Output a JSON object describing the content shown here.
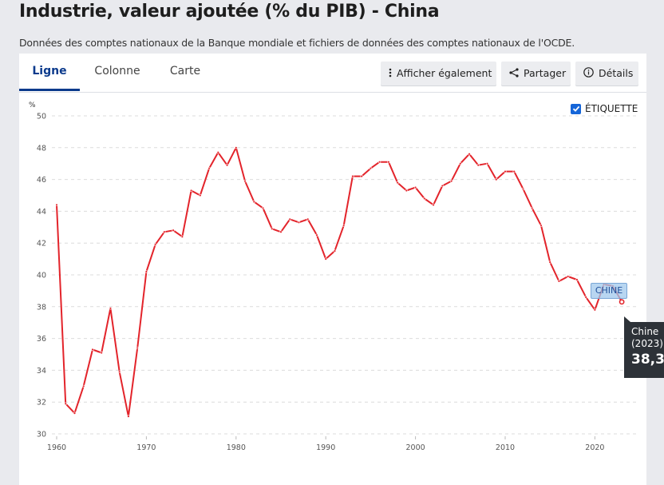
{
  "header": {
    "title": "Industrie, valeur ajoutée (% du PIB) - China",
    "subtitle": "Données des comptes nationaux de la Banque mondiale et fichiers de données des comptes nationaux de l'OCDE."
  },
  "tabs": [
    {
      "label": "Ligne",
      "active": true
    },
    {
      "label": "Colonne",
      "active": false
    },
    {
      "label": "Carte",
      "active": false
    }
  ],
  "toolbar": {
    "show_also_label": "Afficher également",
    "share_label": "Partager",
    "details_label": "Détails",
    "show_also_icon": "vertical-dots-icon",
    "share_icon": "share-icon",
    "details_icon": "info-icon"
  },
  "label_toggle": {
    "label": "ÉTIQUETTE",
    "checked": true
  },
  "colors": {
    "accent": "#0b3a8c",
    "series": "#e3242b",
    "checkbox": "#1565d8",
    "tooltip_bg": "#2d3238"
  },
  "series_label": "CHINE",
  "tooltip": {
    "name": "Chine",
    "year": "(2023)",
    "value": "38,3"
  },
  "chart_data": {
    "type": "line",
    "title": "Industrie, valeur ajoutée (% du PIB) - China",
    "xlabel": "",
    "ylabel": "%",
    "ylim": [
      30,
      50
    ],
    "xlim": [
      1960,
      2023
    ],
    "yticks": [
      30,
      32,
      34,
      36,
      38,
      40,
      42,
      44,
      46,
      48,
      50
    ],
    "xticks": [
      1960,
      1970,
      1980,
      1990,
      2000,
      2010,
      2020
    ],
    "grid": true,
    "legend": "label on series end: CHINE",
    "x": [
      1960,
      1961,
      1962,
      1963,
      1964,
      1965,
      1966,
      1967,
      1968,
      1969,
      1970,
      1971,
      1972,
      1973,
      1974,
      1975,
      1976,
      1977,
      1978,
      1979,
      1980,
      1981,
      1982,
      1983,
      1984,
      1985,
      1986,
      1987,
      1988,
      1989,
      1990,
      1991,
      1992,
      1993,
      1994,
      1995,
      1996,
      1997,
      1998,
      1999,
      2000,
      2001,
      2002,
      2003,
      2004,
      2005,
      2006,
      2007,
      2008,
      2009,
      2010,
      2011,
      2012,
      2013,
      2014,
      2015,
      2016,
      2017,
      2018,
      2019,
      2020,
      2021,
      2022,
      2023
    ],
    "series": [
      {
        "name": "Chine",
        "values": [
          44.4,
          31.9,
          31.3,
          33.0,
          35.3,
          35.1,
          37.9,
          33.9,
          31.1,
          35.4,
          40.2,
          41.9,
          42.7,
          42.8,
          42.4,
          45.3,
          45.0,
          46.7,
          47.7,
          46.9,
          48.0,
          45.9,
          44.6,
          44.2,
          42.9,
          42.7,
          43.5,
          43.3,
          43.5,
          42.5,
          41.0,
          41.5,
          43.1,
          46.2,
          46.2,
          46.7,
          47.1,
          47.1,
          45.8,
          45.3,
          45.5,
          44.8,
          44.4,
          45.6,
          45.9,
          47.0,
          47.6,
          46.9,
          47.0,
          46.0,
          46.5,
          46.5,
          45.4,
          44.2,
          43.1,
          40.8,
          39.6,
          39.9,
          39.7,
          38.6,
          37.8,
          39.4,
          39.3,
          38.3
        ]
      }
    ]
  }
}
